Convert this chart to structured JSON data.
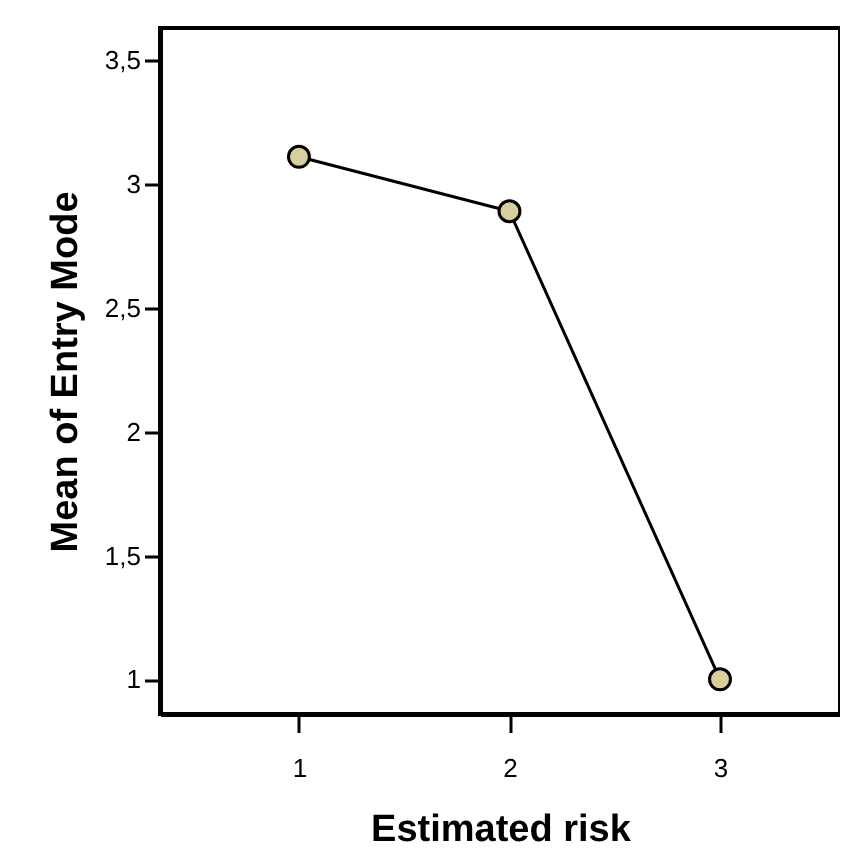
{
  "chart_data": {
    "type": "line",
    "xlabel": "Estimated risk",
    "ylabel": "Mean of Entry Mode",
    "x": [
      1,
      2,
      3
    ],
    "series": [
      {
        "color": "#d8cf9c",
        "values": [
          3.11,
          2.89,
          1.0
        ]
      }
    ],
    "xlim": [
      0.34,
      3.57
    ],
    "xticks": [
      1,
      2,
      3
    ],
    "ylim": [
      0.86,
      3.63
    ],
    "yticks": [
      {
        "value": 1,
        "label": "1"
      },
      {
        "value": 1.5,
        "label": "1,5"
      },
      {
        "value": 2,
        "label": "2"
      },
      {
        "value": 2.5,
        "label": "2,5"
      },
      {
        "value": 3,
        "label": "3"
      },
      {
        "value": 3.5,
        "label": "3,5"
      }
    ],
    "marker": "circle",
    "line_style": "solid",
    "grid": false
  }
}
